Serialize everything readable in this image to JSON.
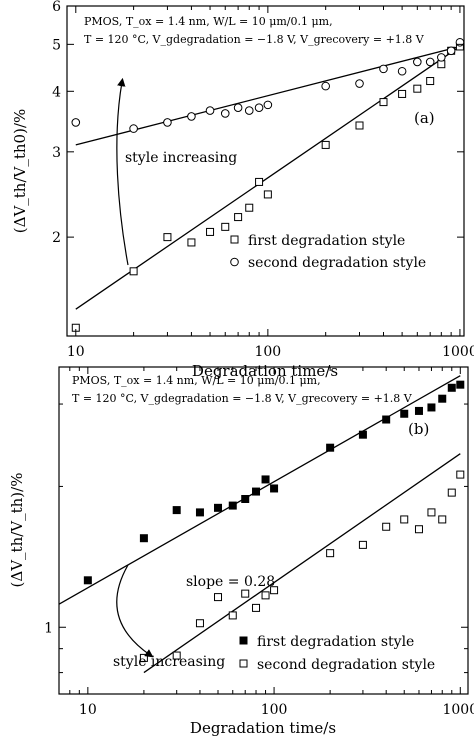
{
  "chart_data": [
    {
      "type": "scatter",
      "panel_label": "(a)",
      "annotation_lines": [
        "PMOS, T_ox = 1.4 nm, W/L = 10 μm/0.1 μm,",
        "T = 120 °C, V_gdegradation = −1.8 V,  V_grecovery = +1.8 V"
      ],
      "xlabel": "Degradation time/s",
      "ylabel": "(ΔV_th/V_th0)/%",
      "xscale": "log",
      "yscale": "log",
      "xlim": [
        9,
        1050
      ],
      "ylim": [
        1.25,
        6
      ],
      "x_ticks": [
        10,
        100,
        1000
      ],
      "x_tick_labels": [
        "10",
        "100",
        "1000"
      ],
      "y_ticks": [
        2,
        3,
        4,
        5,
        6
      ],
      "y_tick_labels": [
        "2",
        "3",
        "4",
        "5",
        "6"
      ],
      "arrow_text": "style increasing",
      "arrow_direction": "up",
      "legend_position": "lower-right",
      "series": [
        {
          "name": "first degradation style",
          "marker": "open-square",
          "points": [
            [
              10,
              1.3
            ],
            [
              20,
              1.7
            ],
            [
              30,
              2.0
            ],
            [
              40,
              1.95
            ],
            [
              50,
              2.05
            ],
            [
              60,
              2.1
            ],
            [
              70,
              2.2
            ],
            [
              80,
              2.3
            ],
            [
              90,
              2.6
            ],
            [
              100,
              2.45
            ],
            [
              200,
              3.1
            ],
            [
              300,
              3.4
            ],
            [
              400,
              3.8
            ],
            [
              500,
              3.95
            ],
            [
              600,
              4.05
            ],
            [
              700,
              4.2
            ],
            [
              800,
              4.55
            ],
            [
              900,
              4.85
            ],
            [
              1000,
              4.95
            ]
          ],
          "fit": [
            [
              10,
              1.42
            ],
            [
              1000,
              4.95
            ]
          ]
        },
        {
          "name": "second degradation style",
          "marker": "open-circle",
          "points": [
            [
              10,
              3.45
            ],
            [
              20,
              3.35
            ],
            [
              30,
              3.45
            ],
            [
              40,
              3.55
            ],
            [
              50,
              3.65
            ],
            [
              60,
              3.6
            ],
            [
              70,
              3.7
            ],
            [
              80,
              3.65
            ],
            [
              90,
              3.7
            ],
            [
              100,
              3.75
            ],
            [
              200,
              4.1
            ],
            [
              300,
              4.15
            ],
            [
              400,
              4.45
            ],
            [
              500,
              4.4
            ],
            [
              600,
              4.6
            ],
            [
              700,
              4.6
            ],
            [
              800,
              4.7
            ],
            [
              900,
              4.85
            ],
            [
              1000,
              5.05
            ]
          ],
          "fit": [
            [
              10,
              3.1
            ],
            [
              1000,
              4.95
            ]
          ]
        }
      ]
    },
    {
      "type": "scatter",
      "panel_label": "(b)",
      "annotation_lines": [
        "PMOS, T_ox = 1.4 nm, W/L = 10 μm/0.1 μm,",
        "T = 120 °C, V_gdegradation = −1.8 V,  V_grecovery = +1.8 V"
      ],
      "xlabel": "Degradation time/s",
      "ylabel": "(ΔV_th/V_th)/%",
      "xscale": "log",
      "yscale": "log",
      "xlim": [
        7,
        1100
      ],
      "ylim": [
        0.72,
        3.6
      ],
      "x_ticks": [
        10,
        100,
        1000
      ],
      "x_tick_labels": [
        "10",
        "100",
        "1000"
      ],
      "y_ticks": [
        1
      ],
      "y_tick_labels": [
        "1"
      ],
      "slope_text": "slope = 0.28",
      "arrow_text": "style increasing",
      "arrow_direction": "down",
      "legend_position": "lower-right",
      "series": [
        {
          "name": "first degradation style",
          "marker": "filled-square",
          "points": [
            [
              10,
              1.26
            ],
            [
              20,
              1.55
            ],
            [
              30,
              1.78
            ],
            [
              40,
              1.76
            ],
            [
              50,
              1.8
            ],
            [
              60,
              1.82
            ],
            [
              70,
              1.88
            ],
            [
              80,
              1.95
            ],
            [
              90,
              2.07
            ],
            [
              100,
              1.98
            ],
            [
              200,
              2.42
            ],
            [
              300,
              2.58
            ],
            [
              400,
              2.78
            ],
            [
              500,
              2.86
            ],
            [
              600,
              2.9
            ],
            [
              700,
              2.95
            ],
            [
              800,
              3.08
            ],
            [
              900,
              3.25
            ],
            [
              1000,
              3.3
            ]
          ],
          "fit": [
            [
              7,
              1.12
            ],
            [
              1000,
              3.45
            ]
          ]
        },
        {
          "name": "second degradation style",
          "marker": "open-square",
          "points": [
            [
              20,
              0.86
            ],
            [
              30,
              0.87
            ],
            [
              40,
              1.02
            ],
            [
              50,
              1.16
            ],
            [
              60,
              1.06
            ],
            [
              70,
              1.18
            ],
            [
              80,
              1.1
            ],
            [
              90,
              1.17
            ],
            [
              100,
              1.2
            ],
            [
              200,
              1.44
            ],
            [
              300,
              1.5
            ],
            [
              400,
              1.64
            ],
            [
              500,
              1.7
            ],
            [
              600,
              1.62
            ],
            [
              700,
              1.76
            ],
            [
              800,
              1.7
            ],
            [
              900,
              1.94
            ],
            [
              1000,
              2.12
            ]
          ],
          "fit": [
            [
              20,
              0.8
            ],
            [
              1000,
              2.35
            ]
          ]
        }
      ]
    }
  ]
}
